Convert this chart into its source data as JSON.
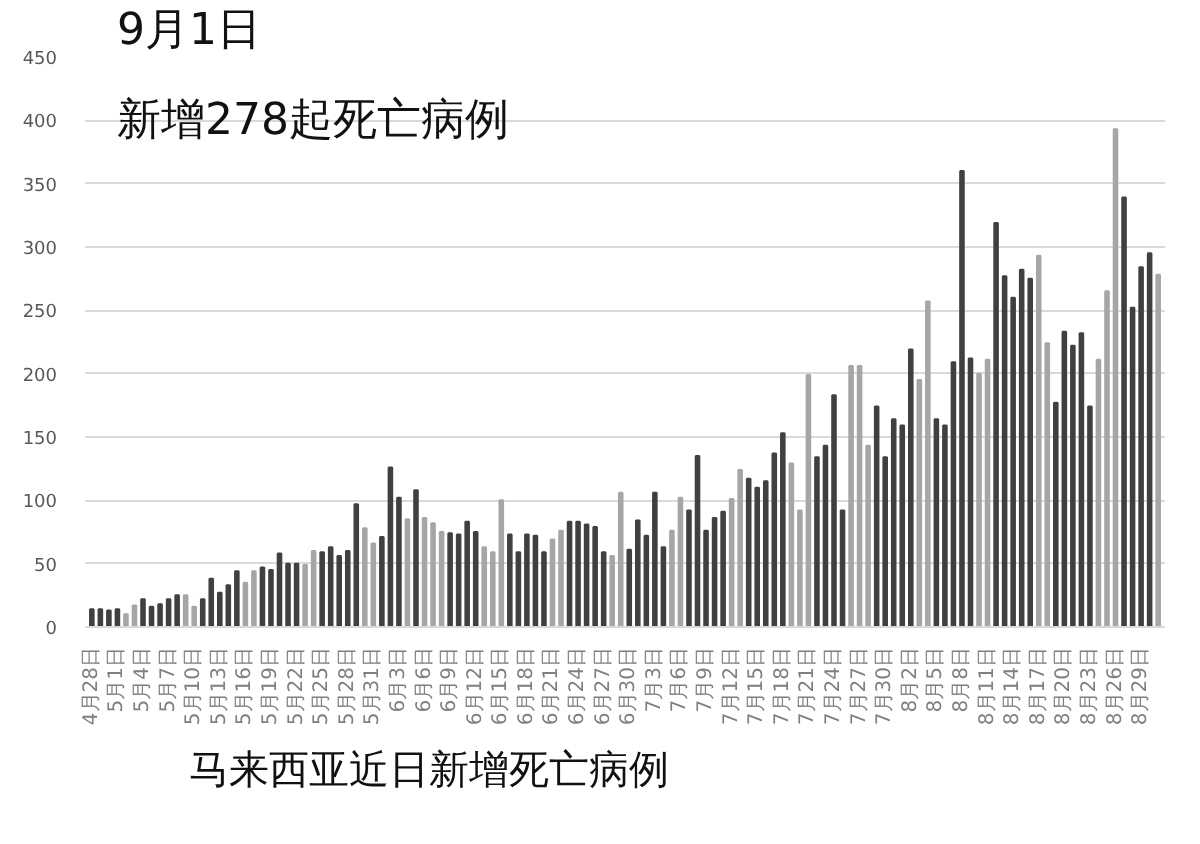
{
  "chart_data": {
    "type": "bar",
    "title": "9月1日",
    "subtitle": "新增278起死亡病例",
    "annotations": [
      "马来西亚近日新增死亡病例"
    ],
    "categories": [
      "4月28日",
      null,
      null,
      "5月1日",
      null,
      null,
      "5月4日",
      null,
      null,
      "5月7日",
      null,
      null,
      "5月10日",
      null,
      null,
      "5月13日",
      null,
      null,
      "5月16日",
      null,
      null,
      "5月19日",
      null,
      null,
      "5月22日",
      null,
      null,
      "5月25日",
      null,
      null,
      "5月28日",
      null,
      null,
      "5月31日",
      null,
      null,
      "6月3日",
      null,
      null,
      "6月6日",
      null,
      null,
      "6月9日",
      null,
      null,
      "6月12日",
      null,
      null,
      "6月15日",
      null,
      null,
      "6月18日",
      null,
      null,
      "6月21日",
      null,
      null,
      "6月24日",
      null,
      null,
      "6月27日",
      null,
      null,
      "6月30日",
      null,
      null,
      "7月3日",
      null,
      null,
      "7月6日",
      null,
      null,
      "7月9日",
      null,
      null,
      "7月12日",
      null,
      null,
      "7月15日",
      null,
      null,
      "7月18日",
      null,
      null,
      "7月21日",
      null,
      null,
      "7月24日",
      null,
      null,
      "7月27日",
      null,
      null,
      "7月30日",
      null,
      null,
      "8月2日",
      null,
      null,
      "8月5日",
      null,
      null,
      "8月8日",
      null,
      null,
      "8月11日",
      null,
      null,
      "8月14日",
      null,
      null,
      "8月17日",
      null,
      null,
      "8月20日",
      null,
      null,
      "8月23日",
      null,
      null,
      "8月26日",
      null,
      null,
      "8月29日",
      null,
      null
    ],
    "values": [
      14,
      14,
      13,
      14,
      10,
      17,
      22,
      16,
      18,
      22,
      25,
      25,
      16,
      22,
      38,
      27,
      33,
      44,
      35,
      44,
      47,
      45,
      58,
      50,
      50,
      49,
      60,
      59,
      63,
      56,
      60,
      97,
      78,
      66,
      71,
      126,
      102,
      85,
      108,
      86,
      82,
      75,
      74,
      73,
      83,
      75,
      63,
      59,
      100,
      73,
      59,
      73,
      72,
      59,
      69,
      76,
      83,
      83,
      81,
      79,
      59,
      56,
      106,
      61,
      84,
      72,
      106,
      63,
      76,
      102,
      92,
      135,
      76,
      86,
      91,
      101,
      124,
      117,
      110,
      115,
      137,
      153,
      129,
      92,
      199,
      134,
      143,
      183,
      92,
      206,
      206,
      143,
      174,
      134,
      164,
      159,
      219,
      195,
      257,
      164,
      159,
      209,
      360,
      212,
      200,
      211,
      319,
      277,
      260,
      282,
      275,
      293,
      224,
      177,
      233,
      222,
      232,
      174,
      211,
      265,
      393,
      339,
      252,
      284,
      295,
      278
    ],
    "colors": [
      "#404040",
      "#404040",
      "#404040",
      "#404040",
      "#a6a6a6",
      "#a6a6a6",
      "#404040",
      "#404040",
      "#404040",
      "#404040",
      "#404040",
      "#a6a6a6",
      "#a6a6a6",
      "#404040",
      "#404040",
      "#404040",
      "#404040",
      "#404040",
      "#a6a6a6",
      "#a6a6a6",
      "#404040",
      "#404040",
      "#404040",
      "#404040",
      "#404040",
      "#a6a6a6",
      "#a6a6a6",
      "#404040",
      "#404040",
      "#404040",
      "#404040",
      "#404040",
      "#a6a6a6",
      "#a6a6a6",
      "#404040",
      "#404040",
      "#404040",
      "#a6a6a6",
      "#404040",
      "#a6a6a6",
      "#a6a6a6",
      "#a6a6a6",
      "#404040",
      "#404040",
      "#404040",
      "#404040",
      "#a6a6a6",
      "#a6a6a6",
      "#a6a6a6",
      "#404040",
      "#404040",
      "#404040",
      "#404040",
      "#404040",
      "#a6a6a6",
      "#a6a6a6",
      "#404040",
      "#404040",
      "#404040",
      "#404040",
      "#404040",
      "#a6a6a6",
      "#a6a6a6",
      "#404040",
      "#404040",
      "#404040",
      "#404040",
      "#404040",
      "#a6a6a6",
      "#a6a6a6",
      "#404040",
      "#404040",
      "#404040",
      "#404040",
      "#404040",
      "#a6a6a6",
      "#a6a6a6",
      "#404040",
      "#404040",
      "#404040",
      "#404040",
      "#404040",
      "#a6a6a6",
      "#a6a6a6",
      "#a6a6a6",
      "#404040",
      "#404040",
      "#404040",
      "#404040",
      "#a6a6a6",
      "#a6a6a6",
      "#a6a6a6",
      "#404040",
      "#404040",
      "#404040",
      "#404040",
      "#404040",
      "#a6a6a6",
      "#a6a6a6",
      "#404040",
      "#404040",
      "#404040",
      "#404040",
      "#404040",
      "#a6a6a6",
      "#a6a6a6",
      "#404040",
      "#404040",
      "#404040",
      "#404040",
      "#404040",
      "#a6a6a6",
      "#a6a6a6",
      "#404040",
      "#404040",
      "#404040",
      "#404040",
      "#404040",
      "#a6a6a6",
      "#a6a6a6",
      "#a6a6a6",
      "#404040",
      "#404040",
      "#404040",
      "#404040",
      "#a6a6a6"
    ],
    "ylim": [
      0,
      450
    ],
    "yticks": [
      0,
      50,
      100,
      150,
      200,
      250,
      300,
      350,
      400,
      450
    ],
    "grid": "y"
  }
}
